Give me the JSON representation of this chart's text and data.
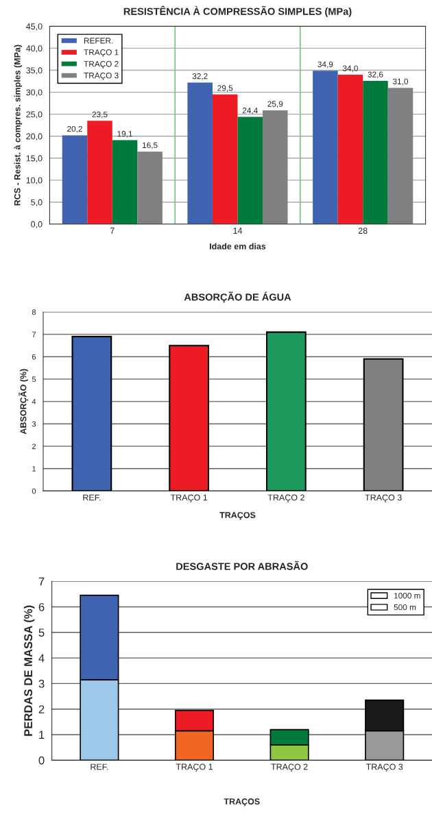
{
  "chart_data": [
    {
      "type": "bar",
      "title": "RESISTÊNCIA À COMPRESSÃO SIMPLES (MPa)",
      "xlabel": "Idade em dias",
      "ylabel": "RCS - Resist. à compres. simples (MPa)",
      "categories": [
        "7",
        "14",
        "28"
      ],
      "series": [
        {
          "name": "REFER.",
          "color": "#3f63ae",
          "values": [
            20.2,
            32.2,
            34.9
          ],
          "value_labels": [
            "20,2",
            "32,2",
            "34,9"
          ]
        },
        {
          "name": "TRAÇO 1",
          "color": "#ed1c24",
          "values": [
            23.5,
            29.5,
            34.0
          ],
          "value_labels": [
            "23,5",
            "29,5",
            "34,0"
          ]
        },
        {
          "name": "TRAÇO 2",
          "color": "#007a3d",
          "values": [
            19.1,
            24.4,
            32.6
          ],
          "value_labels": [
            "19,1",
            "24,4",
            "32,6"
          ]
        },
        {
          "name": "TRAÇO 3",
          "color": "#808080",
          "values": [
            16.5,
            25.9,
            31.0
          ],
          "value_labels": [
            "16,5",
            "25,9",
            "31,0"
          ]
        }
      ],
      "ylim": [
        0,
        45
      ],
      "yticks": [
        {
          "value": 0,
          "label": "0,0"
        },
        {
          "value": 5,
          "label": "5,0"
        },
        {
          "value": 10,
          "label": "10,0"
        },
        {
          "value": 15,
          "label": "15,0"
        },
        {
          "value": 20,
          "label": "20,0"
        },
        {
          "value": 25,
          "label": "25,0"
        },
        {
          "value": 30,
          "label": "30,0"
        },
        {
          "value": 35,
          "label": "35,0"
        },
        {
          "value": 40,
          "label": "40,0"
        },
        {
          "value": 45,
          "label": "45,0"
        }
      ],
      "grid": true,
      "legend": "top left"
    },
    {
      "type": "bar",
      "title": "ABSORÇÃO DE ÁGUA",
      "xlabel": "TRAÇOS",
      "ylabel": "ABSORÇÃO (%)",
      "categories": [
        "REF.",
        "TRAÇO 1",
        "TRAÇO 2",
        "TRAÇO 3"
      ],
      "values": [
        6.9,
        6.5,
        7.1,
        5.9
      ],
      "colors": [
        "#3f63ae",
        "#ed1c24",
        "#1c9a5e",
        "#808080"
      ],
      "ylim": [
        0,
        8
      ],
      "yticks": [
        0,
        1,
        2,
        3,
        4,
        5,
        6,
        7,
        8
      ],
      "grid": "y"
    },
    {
      "type": "bar",
      "title": "DESGASTE POR ABRASÃO",
      "xlabel": "TRAÇOS",
      "ylabel": "PERDAS DE MASSA (%)",
      "categories": [
        "REF.",
        "TRAÇO 1",
        "TRAÇO 2",
        "TRAÇO 3"
      ],
      "stacked": true,
      "series": [
        {
          "name": "500 m",
          "colors": [
            "#9ec8ea",
            "#f26522",
            "#8dc63f",
            "#999999"
          ],
          "values": [
            3.15,
            1.15,
            0.6,
            1.15
          ]
        },
        {
          "name": "1000 m",
          "colors": [
            "#3f63ae",
            "#ed1c24",
            "#007a3d",
            "#1a1a1a"
          ],
          "values": [
            3.3,
            0.8,
            0.6,
            1.2
          ]
        }
      ],
      "ylim": [
        0,
        7
      ],
      "yticks": [
        0,
        1,
        2,
        3,
        4,
        5,
        6,
        7
      ],
      "grid": "y",
      "legend": "top right"
    }
  ]
}
